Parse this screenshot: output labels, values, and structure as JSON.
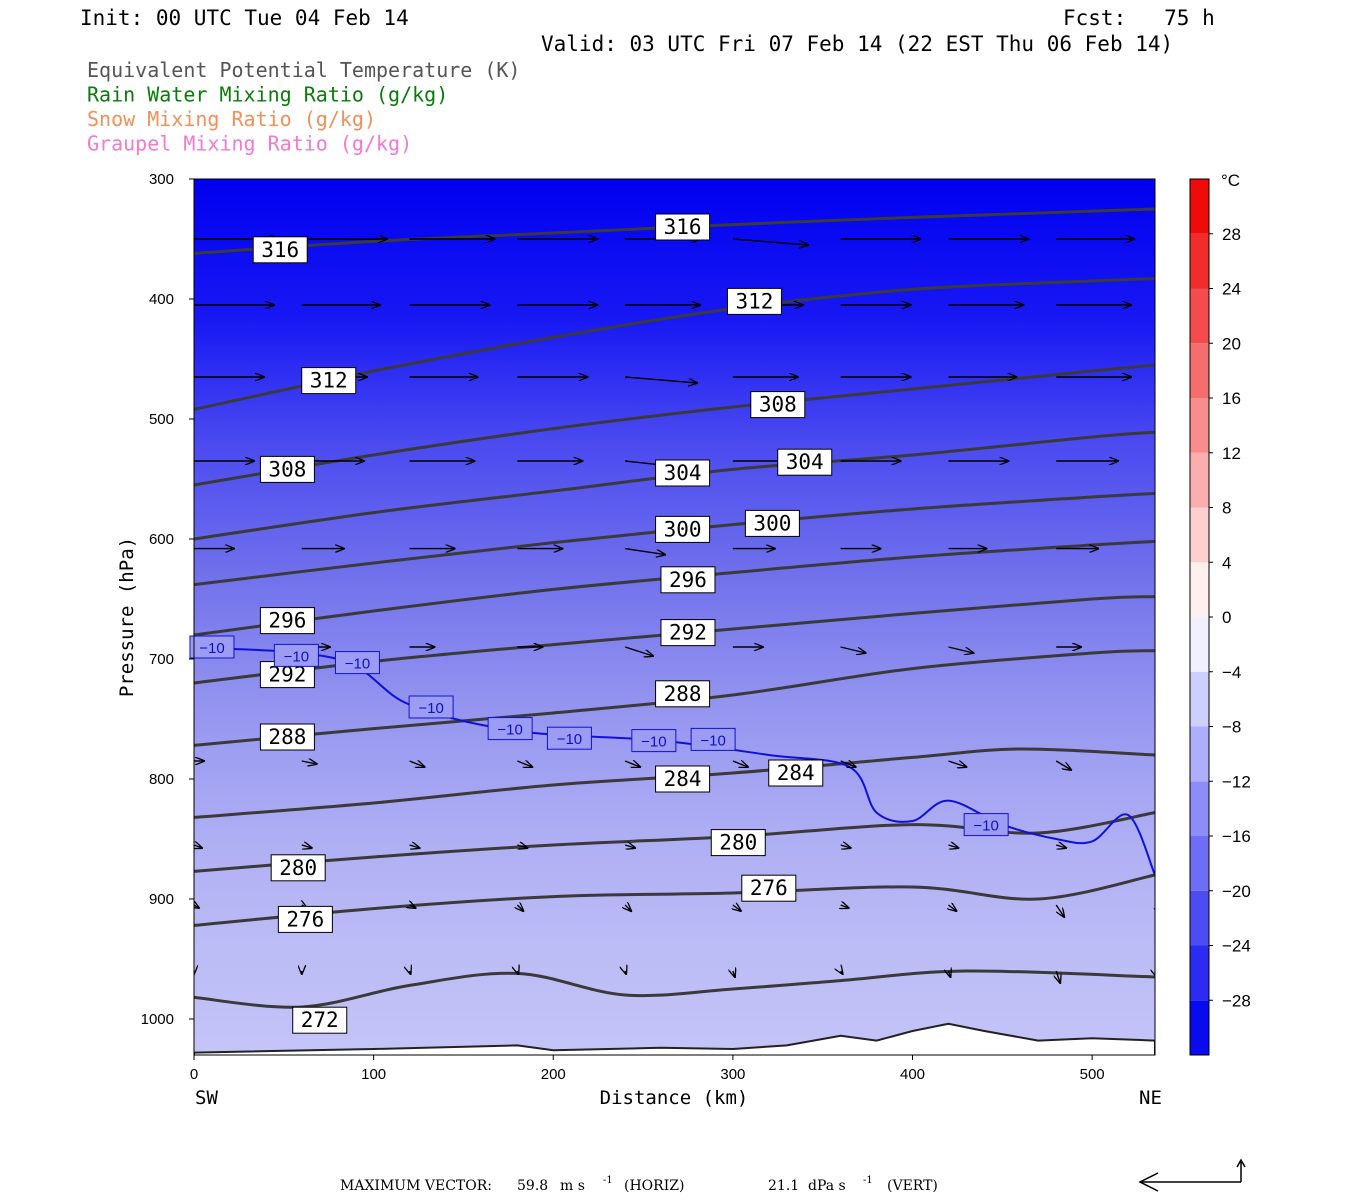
{
  "header": {
    "init": "Init: 00 UTC Tue 04 Feb 14",
    "fcst": "Fcst:   75 h",
    "valid": "Valid: 03 UTC Fri 07 Feb 14 (22 EST Thu 06 Feb 14)"
  },
  "legend": [
    {
      "text": "Equivalent Potential Temperature (K)",
      "color": "#555555"
    },
    {
      "text": "Rain Water Mixing Ratio (g/kg)",
      "color": "#0a7a0a"
    },
    {
      "text": "Snow Mixing Ratio (g/kg)",
      "color": "#f0905a"
    },
    {
      "text": "Graupel Mixing Ratio (g/kg)",
      "color": "#f07ad0"
    }
  ],
  "footer": {
    "max_vector_label": "MAXIMUM VECTOR:",
    "horiz_value": "59.8",
    "horiz_unit_text": "m s",
    "horiz_tag": "(HORIZ)",
    "vert_value": "21.1",
    "vert_unit_text": "dPa s",
    "vert_tag": "(VERT)",
    "exponent": "-1"
  },
  "chart_data": {
    "type": "cross-section",
    "xlabel": "Distance (km)",
    "ylabel": "Pressure (hPa)",
    "x_left_label": "SW",
    "x_right_label": "NE",
    "xlim": [
      0,
      535
    ],
    "ylim": [
      1030,
      300
    ],
    "x_ticks": [
      0,
      100,
      200,
      300,
      400,
      500
    ],
    "y_ticks": [
      300,
      400,
      500,
      600,
      700,
      800,
      900,
      1000
    ],
    "colorbar": {
      "unit": "°C",
      "ticks": [
        28,
        24,
        20,
        16,
        12,
        8,
        4,
        0,
        -4,
        -8,
        -12,
        -16,
        -20,
        -24,
        -28
      ],
      "range": [
        -32,
        32
      ]
    },
    "theta_e_contours": [
      {
        "level": 316,
        "points": [
          [
            0,
            362
          ],
          [
            100,
            352
          ],
          [
            200,
            345
          ],
          [
            300,
            338
          ],
          [
            400,
            332
          ],
          [
            535,
            325
          ]
        ],
        "labels": [
          [
            48,
            359
          ],
          [
            272,
            340
          ]
        ]
      },
      {
        "level": 312,
        "points": [
          [
            0,
            492
          ],
          [
            100,
            460
          ],
          [
            200,
            432
          ],
          [
            300,
            408
          ],
          [
            400,
            392
          ],
          [
            500,
            385
          ],
          [
            535,
            383
          ]
        ],
        "labels": [
          [
            75,
            468
          ],
          [
            312,
            402
          ]
        ]
      },
      {
        "level": 308,
        "points": [
          [
            0,
            555
          ],
          [
            100,
            530
          ],
          [
            200,
            508
          ],
          [
            300,
            490
          ],
          [
            400,
            475
          ],
          [
            500,
            460
          ],
          [
            535,
            455
          ]
        ],
        "labels": [
          [
            52,
            542
          ],
          [
            325,
            488
          ]
        ]
      },
      {
        "level": 304,
        "points": [
          [
            0,
            600
          ],
          [
            100,
            578
          ],
          [
            200,
            560
          ],
          [
            300,
            542
          ],
          [
            400,
            530
          ],
          [
            500,
            515
          ],
          [
            535,
            511
          ]
        ],
        "labels": [
          [
            272,
            545
          ],
          [
            340,
            536
          ]
        ]
      },
      {
        "level": 300,
        "points": [
          [
            0,
            638
          ],
          [
            100,
            620
          ],
          [
            200,
            603
          ],
          [
            300,
            588
          ],
          [
            400,
            575
          ],
          [
            500,
            565
          ],
          [
            535,
            562
          ]
        ],
        "labels": [
          [
            272,
            592
          ],
          [
            322,
            587
          ]
        ]
      },
      {
        "level": 296,
        "points": [
          [
            0,
            680
          ],
          [
            100,
            660
          ],
          [
            200,
            642
          ],
          [
            300,
            628
          ],
          [
            400,
            615
          ],
          [
            500,
            605
          ],
          [
            535,
            602
          ]
        ],
        "labels": [
          [
            52,
            668
          ],
          [
            275,
            634
          ]
        ]
      },
      {
        "level": 292,
        "points": [
          [
            0,
            720
          ],
          [
            100,
            702
          ],
          [
            200,
            688
          ],
          [
            300,
            675
          ],
          [
            400,
            662
          ],
          [
            500,
            650
          ],
          [
            535,
            648
          ]
        ],
        "labels": [
          [
            52,
            713
          ],
          [
            275,
            678
          ]
        ]
      },
      {
        "level": 288,
        "points": [
          [
            0,
            772
          ],
          [
            100,
            758
          ],
          [
            200,
            745
          ],
          [
            300,
            730
          ],
          [
            400,
            708
          ],
          [
            500,
            695
          ],
          [
            535,
            693
          ]
        ],
        "labels": [
          [
            52,
            765
          ],
          [
            272,
            729
          ]
        ]
      },
      {
        "level": 284,
        "points": [
          [
            0,
            832
          ],
          [
            100,
            820
          ],
          [
            200,
            805
          ],
          [
            300,
            795
          ],
          [
            400,
            782
          ],
          [
            460,
            775
          ],
          [
            535,
            780
          ]
        ],
        "labels": [
          [
            272,
            800
          ],
          [
            335,
            795
          ]
        ]
      },
      {
        "level": 280,
        "points": [
          [
            0,
            877
          ],
          [
            100,
            865
          ],
          [
            200,
            855
          ],
          [
            300,
            848
          ],
          [
            400,
            838
          ],
          [
            470,
            845
          ],
          [
            535,
            828
          ]
        ],
        "labels": [
          [
            58,
            874
          ],
          [
            303,
            853
          ]
        ]
      },
      {
        "level": 276,
        "points": [
          [
            0,
            922
          ],
          [
            100,
            908
          ],
          [
            200,
            898
          ],
          [
            300,
            895
          ],
          [
            400,
            890
          ],
          [
            470,
            900
          ],
          [
            535,
            880
          ]
        ],
        "labels": [
          [
            62,
            917
          ],
          [
            320,
            891
          ]
        ]
      },
      {
        "level": 272,
        "points": [
          [
            0,
            982
          ],
          [
            60,
            990
          ],
          [
            120,
            972
          ],
          [
            180,
            962
          ],
          [
            240,
            980
          ],
          [
            300,
            975
          ],
          [
            360,
            968
          ],
          [
            430,
            960
          ],
          [
            535,
            965
          ]
        ],
        "labels": [
          [
            70,
            1001
          ]
        ]
      }
    ],
    "temperature_contours": [
      {
        "level": -10,
        "points": [
          [
            0,
            690
          ],
          [
            80,
            700
          ],
          [
            120,
            738
          ],
          [
            180,
            760
          ],
          [
            260,
            768
          ],
          [
            320,
            780
          ],
          [
            365,
            790
          ],
          [
            380,
            828
          ],
          [
            400,
            835
          ],
          [
            420,
            818
          ],
          [
            450,
            838
          ],
          [
            480,
            850
          ],
          [
            500,
            852
          ],
          [
            520,
            830
          ],
          [
            535,
            880
          ]
        ],
        "labels": [
          [
            10,
            690
          ],
          [
            57,
            697
          ],
          [
            91,
            703
          ],
          [
            132,
            740
          ],
          [
            176,
            758
          ],
          [
            209,
            766
          ],
          [
            256,
            768
          ],
          [
            289,
            767
          ],
          [
            441,
            838
          ]
        ]
      }
    ],
    "wind_vectors": [
      {
        "p": 350,
        "x": [
          0,
          60,
          120,
          180,
          240,
          300,
          360,
          420,
          480,
          535
        ],
        "u": [
          85,
          85,
          85,
          80,
          75,
          75,
          80,
          80,
          78,
          70
        ],
        "w": [
          0,
          0,
          0,
          0,
          0,
          -2,
          0,
          0,
          0,
          0
        ]
      },
      {
        "p": 405,
        "x": [
          0,
          60,
          120,
          180,
          240,
          300,
          360,
          420,
          480,
          535
        ],
        "u": [
          80,
          78,
          80,
          80,
          75,
          70,
          70,
          75,
          75,
          60
        ],
        "w": [
          0,
          0,
          0,
          0,
          0,
          0,
          0,
          0,
          0,
          0
        ]
      },
      {
        "p": 465,
        "x": [
          0,
          60,
          120,
          180,
          240,
          300,
          360,
          420,
          480,
          535
        ],
        "u": [
          70,
          65,
          68,
          70,
          72,
          65,
          70,
          68,
          75,
          70
        ],
        "w": [
          0,
          0,
          0,
          0,
          -2,
          0,
          0,
          0,
          0,
          0
        ]
      },
      {
        "p": 535,
        "x": [
          0,
          60,
          120,
          180,
          240,
          300,
          360,
          420,
          480,
          535
        ],
        "u": [
          60,
          62,
          65,
          65,
          55,
          60,
          60,
          60,
          62,
          60
        ],
        "w": [
          0,
          0,
          0,
          0,
          -2,
          0,
          0,
          0,
          0,
          0
        ]
      },
      {
        "p": 608,
        "x": [
          0,
          60,
          120,
          180,
          240,
          300,
          360,
          420,
          480,
          535
        ],
        "u": [
          40,
          42,
          45,
          45,
          40,
          42,
          40,
          38,
          42,
          40
        ],
        "w": [
          0,
          0,
          0,
          0,
          -2,
          0,
          0,
          0,
          0,
          0
        ]
      },
      {
        "p": 690,
        "x": [
          0,
          60,
          120,
          180,
          240,
          300,
          360,
          420,
          480,
          535
        ],
        "u": [
          25,
          28,
          25,
          25,
          28,
          30,
          25,
          25,
          25,
          25
        ],
        "w": [
          0,
          0,
          0,
          0,
          -3,
          0,
          -2,
          -2,
          0,
          0
        ]
      },
      {
        "p": 785,
        "x": [
          0,
          60,
          120,
          180,
          240,
          300,
          360,
          420,
          480,
          535
        ],
        "u": [
          10,
          15,
          15,
          15,
          15,
          15,
          15,
          18,
          15,
          15
        ],
        "w": [
          0,
          -1,
          -2,
          -2,
          -2,
          -2,
          -2,
          -2,
          -3,
          -3
        ]
      },
      {
        "p": 855,
        "x": [
          0,
          60,
          120,
          180,
          240,
          300,
          360,
          420,
          480,
          535
        ],
        "u": [
          8,
          10,
          10,
          10,
          10,
          10,
          10,
          10,
          10,
          10
        ],
        "w": [
          -1,
          -1,
          -1,
          -1,
          -1,
          -1,
          -1,
          -1,
          -1,
          -1
        ]
      },
      {
        "p": 905,
        "x": [
          0,
          60,
          120,
          180,
          240,
          300,
          360,
          420,
          480,
          535
        ],
        "u": [
          5,
          5,
          6,
          6,
          6,
          8,
          8,
          8,
          8,
          8
        ],
        "w": [
          -1,
          -1,
          -1,
          -2,
          -2,
          -2,
          -1,
          -2,
          -4,
          -2
        ]
      },
      {
        "p": 960,
        "x": [
          0,
          60,
          120,
          180,
          240,
          300,
          360,
          420,
          480,
          535
        ],
        "u": [
          0,
          0,
          1,
          1,
          1,
          2,
          2,
          2,
          4,
          2
        ],
        "w": [
          -1,
          -1,
          -1,
          -1,
          -1,
          -2,
          -1,
          -2,
          -4,
          -2
        ]
      }
    ],
    "terrain_surface": [
      [
        0,
        1028
      ],
      [
        100,
        1025
      ],
      [
        180,
        1022
      ],
      [
        200,
        1026
      ],
      [
        260,
        1024
      ],
      [
        300,
        1025
      ],
      [
        330,
        1022
      ],
      [
        360,
        1014
      ],
      [
        380,
        1018
      ],
      [
        400,
        1010
      ],
      [
        420,
        1004
      ],
      [
        440,
        1010
      ],
      [
        470,
        1018
      ],
      [
        500,
        1016
      ],
      [
        535,
        1018
      ]
    ]
  }
}
